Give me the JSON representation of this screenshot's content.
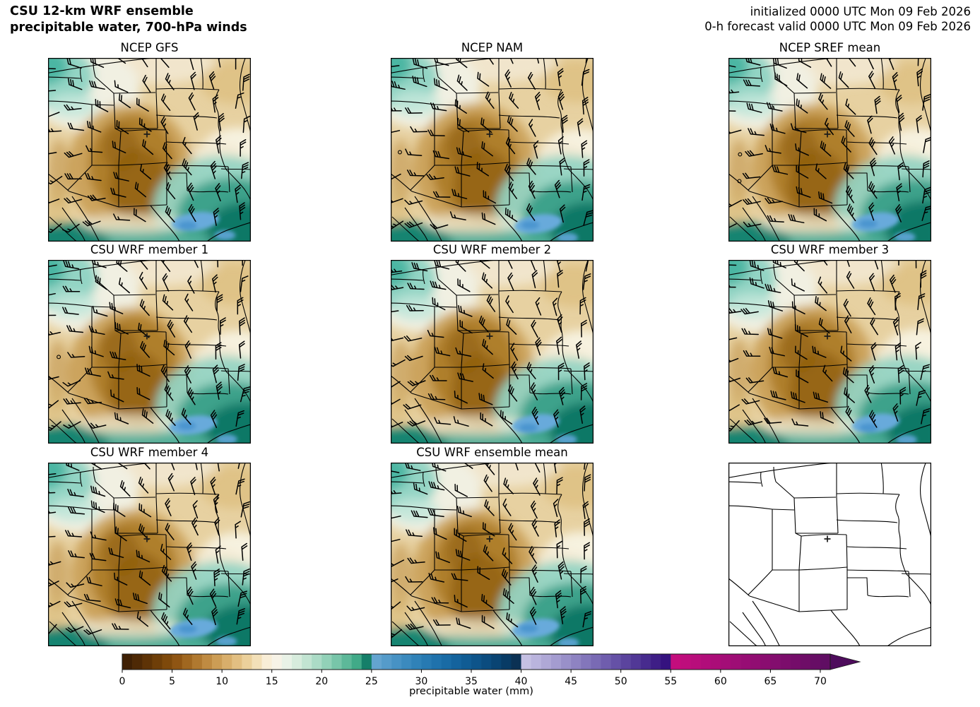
{
  "figure": {
    "title_line1": "CSU 12-km WRF ensemble",
    "title_line2": "precipitable water, 700-hPa winds",
    "init_line1": "initialized 0000 UTC Mon 09 Feb 2026",
    "init_line2": "0-h forecast valid 0000 UTC Mon 09 Feb 2026"
  },
  "panels": [
    {
      "title": "NCEP GFS",
      "type": "field",
      "seed": 11
    },
    {
      "title": "NCEP NAM",
      "type": "field",
      "seed": 23
    },
    {
      "title": "NCEP SREF mean",
      "type": "field",
      "seed": 37
    },
    {
      "title": "CSU WRF member 1",
      "type": "field",
      "seed": 41
    },
    {
      "title": "CSU WRF member 2",
      "type": "field",
      "seed": 53
    },
    {
      "title": "CSU WRF member 3",
      "type": "field",
      "seed": 67
    },
    {
      "title": "CSU WRF member 4",
      "type": "field",
      "seed": 71
    },
    {
      "title": "CSU WRF ensemble mean",
      "type": "field",
      "seed": 83
    },
    {
      "title": "",
      "type": "basemap",
      "seed": 97
    }
  ],
  "colorbar": {
    "label": "precipitable water (mm)",
    "ticks": [
      0,
      5,
      10,
      15,
      20,
      25,
      30,
      35,
      40,
      45,
      50,
      55,
      60,
      65,
      70
    ],
    "units": "mm",
    "arrow_color": "#4e0c5c",
    "segment_colors": [
      "#3f2004",
      "#4e2905",
      "#5e3306",
      "#6e3e08",
      "#7e490b",
      "#8f5513",
      "#a06720",
      "#b07930",
      "#bf8b42",
      "#cc9d55",
      "#d8ae6b",
      "#e2bf82",
      "#ebd09b",
      "#f3e0b8",
      "#f9eed7",
      "#f7f3e7",
      "#e9f2e7",
      "#d7ecdd",
      "#c2e4d2",
      "#abdbc6",
      "#92d1b8",
      "#78c5a9",
      "#5db899",
      "#41aa88",
      "#157f69",
      "#64a4d0",
      "#559bca",
      "#4792c4",
      "#3b8abe",
      "#3082b8",
      "#277ab2",
      "#1f72ac",
      "#196ba5",
      "#14639d",
      "#105c94",
      "#0d548a",
      "#0b4c7f",
      "#094473",
      "#083b65",
      "#0b3154",
      "#c5c0e3",
      "#bab4dd",
      "#afa8d6",
      "#a49cd0",
      "#9990c9",
      "#8e83c2",
      "#8376bb",
      "#796ab4",
      "#6f5dad",
      "#6551a6",
      "#5b449e",
      "#513896",
      "#472b8e",
      "#3e1e86",
      "#35127f",
      "#c40d7d",
      "#be0d7c",
      "#b80d7b",
      "#b10d7a",
      "#ab0d78",
      "#a40d77",
      "#9e0d75",
      "#970d74",
      "#910d72",
      "#8a0d70",
      "#830d6e",
      "#7c0d6c",
      "#750d6a",
      "#6e0d67",
      "#670d65",
      "#600d63"
    ]
  },
  "chart_data": {
    "type": "heatmap",
    "title": "CSU 12-km WRF ensemble precipitable water, 700-hPa winds",
    "initialized": "0000 UTC Mon 09 Feb 2026",
    "valid": "0000 UTC Mon 09 Feb 2026",
    "forecast_hour": "0-h",
    "panel_titles": [
      "NCEP GFS",
      "NCEP NAM",
      "NCEP SREF mean",
      "CSU WRF member 1",
      "CSU WRF member 2",
      "CSU WRF member 3",
      "CSU WRF member 4",
      "CSU WRF ensemble mean",
      ""
    ],
    "colorbar": {
      "label": "precipitable water (mm)",
      "ticks": [
        0,
        5,
        10,
        15,
        20,
        25,
        30,
        35,
        40,
        45,
        50,
        55,
        60,
        65,
        70
      ],
      "range_mm": [
        0,
        73
      ],
      "extend": "max-arrow"
    },
    "field_pattern": [
      {
        "region": "northwest corner (N Rockies / Great Basin NW)",
        "pw_mm": "12-20"
      },
      {
        "region": "central Rockies core (CO / NM / E UT)",
        "pw_mm": "2-8"
      },
      {
        "region": "high plains (NE / KS / Dakotas / IA)",
        "pw_mm": "5-12"
      },
      {
        "region": "southeast (E TX / OK toward Gulf) and N Mexico coast",
        "pw_mm": "15-25"
      },
      {
        "region": "south TX / NE Mexico pocket",
        "pw_mm": "25-32"
      }
    ],
    "winds": "700-hPa wind barbs, 15-35 kt, westerly over the Great Basin veering to northerly over the plains",
    "marker": "plus sign at north-central Colorado in every panel"
  }
}
